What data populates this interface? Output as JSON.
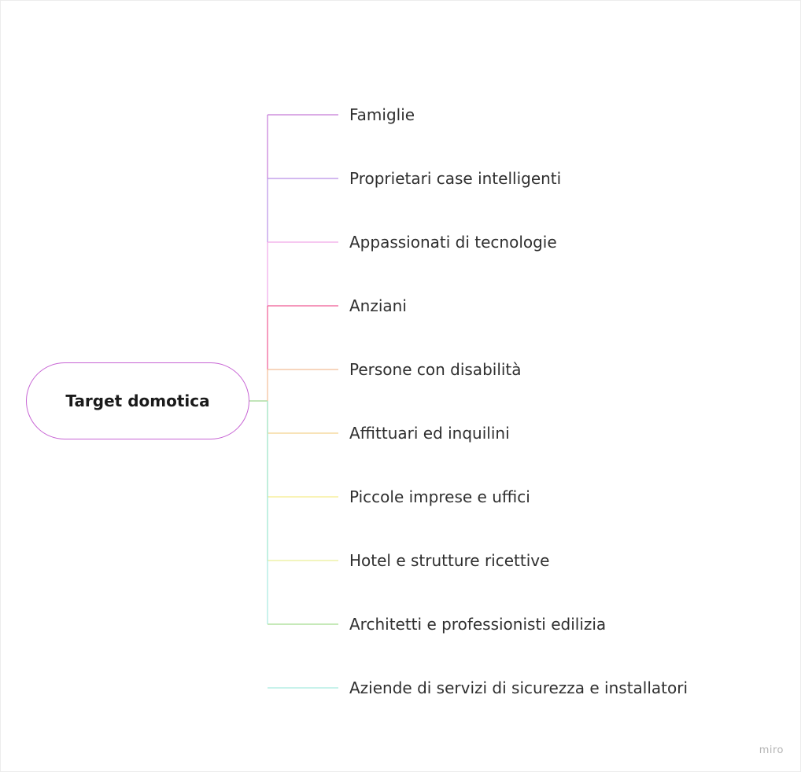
{
  "mindmap": {
    "root": {
      "label": "Target domotica",
      "border_color": "#c764d4"
    },
    "branches": [
      {
        "label": "Famiglie",
        "color": "#c57ad8"
      },
      {
        "label": "Proprietari case intelligenti",
        "color": "#b98fe6"
      },
      {
        "label": "Appassionati di tecnologie",
        "color": "#f0a6e8"
      },
      {
        "label": "Anziani",
        "color": "#ef5b94"
      },
      {
        "label": "Persone con disabilità",
        "color": "#f2bd98"
      },
      {
        "label": "Affittuari ed inquilini",
        "color": "#f3d28e"
      },
      {
        "label": "Piccole imprese e uffici",
        "color": "#f5ec8a"
      },
      {
        "label": "Hotel e strutture ricettive",
        "color": "#e9ef96"
      },
      {
        "label": "Architetti e professionisti edilizia",
        "color": "#a5dc8f"
      },
      {
        "label": "Aziende di servizi di sicurezza e installatori",
        "color": "#a6eadf"
      }
    ],
    "trunk_colors": {
      "upper": "#d2328c",
      "lower": "#9ed58f"
    }
  },
  "watermark": "miro"
}
